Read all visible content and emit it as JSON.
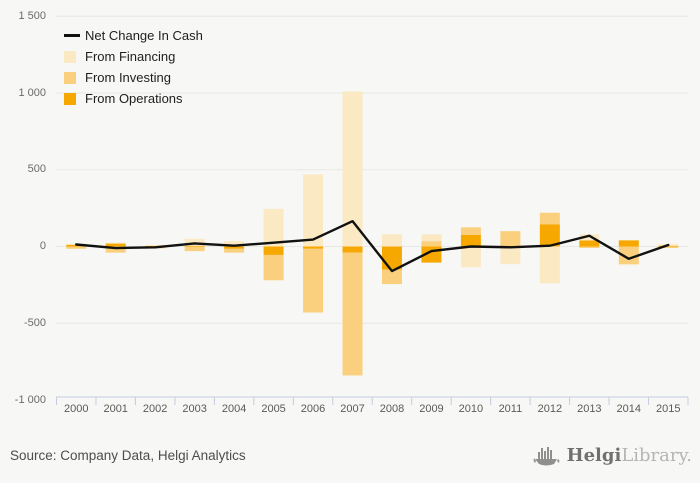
{
  "chart_data": {
    "type": "bar-line-combo",
    "title": "",
    "categories": [
      "2000",
      "2001",
      "2002",
      "2003",
      "2004",
      "2005",
      "2006",
      "2007",
      "2008",
      "2009",
      "2010",
      "2011",
      "2012",
      "2013",
      "2014",
      "2015"
    ],
    "series": [
      {
        "name": "From Operations",
        "color": "#F7A800",
        "values": [
          12,
          20,
          5,
          5,
          -15,
          -55,
          -15,
          -40,
          -150,
          -105,
          75,
          5,
          145,
          40,
          40,
          5
        ]
      },
      {
        "name": "From Investing",
        "color": "#FAD07E",
        "values": [
          -15,
          -40,
          -12,
          -30,
          -25,
          -165,
          -415,
          -800,
          -95,
          35,
          50,
          95,
          75,
          -10,
          -115,
          -10
        ]
      },
      {
        "name": "From Financing",
        "color": "#FBE9C3",
        "values": [
          5,
          5,
          5,
          45,
          35,
          245,
          470,
          1010,
          80,
          45,
          -135,
          -115,
          -240,
          40,
          -5,
          10
        ]
      }
    ],
    "line_series": {
      "name": "Net Change In Cash",
      "color": "#111111",
      "values": [
        13,
        -10,
        -5,
        20,
        5,
        25,
        45,
        165,
        -160,
        -30,
        0,
        -5,
        5,
        70,
        -80,
        10
      ]
    },
    "ylim": [
      -1000,
      1500
    ],
    "y_ticks": [
      {
        "value": 1500,
        "label": "1 500"
      },
      {
        "value": 1000,
        "label": "1 000"
      },
      {
        "value": 500,
        "label": "500"
      },
      {
        "value": 0,
        "label": "0"
      },
      {
        "value": -500,
        "label": "-500"
      },
      {
        "value": -1000,
        "label": "-1 000"
      }
    ],
    "grid": true,
    "legend_position": "top-left",
    "stack_order_note": "stacked from zero outward: Operations, Investing, Financing"
  },
  "legend": {
    "line_label": "Net Change In Cash",
    "items": [
      {
        "label": "From Financing",
        "color": "#FBE9C3"
      },
      {
        "label": "From Investing",
        "color": "#FAD07E"
      },
      {
        "label": "From Operations",
        "color": "#F7A800"
      }
    ]
  },
  "footer": {
    "source_text": "Source: Company Data, Helgi Analytics",
    "logo_text_bold": "Helgi",
    "logo_text_light": "Library.",
    "logo_icon": "viking-ship-bar-chart-icon"
  },
  "colors": {
    "background": "#f7f7f5",
    "gridline": "#e7e7e4",
    "axis": "#c4ccde",
    "ylabel": "#6b6b69",
    "xlabel": "#5a5a58",
    "line": "#111111"
  }
}
